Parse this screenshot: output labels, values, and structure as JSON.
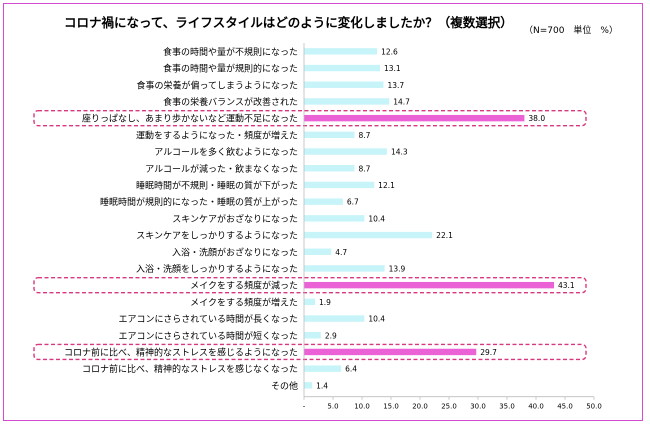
{
  "chart_data": {
    "type": "bar",
    "orientation": "horizontal",
    "title": "コロナ禍になって、ライフスタイルはどのように変化しましたか？（複数選択）",
    "note": "（N=700　単位　%）",
    "categories": [
      "食事の時間や量が不規則になった",
      "食事の時間や量が規則的になった",
      "食事の栄養が偏ってしまうようになった",
      "食事の栄養バランスが改善された",
      "座りっぱなし、あまり歩かないなど運動不足になった",
      "運動をするようになった・頻度が増えた",
      "アルコールを多く飲むようになった",
      "アルコールが減った・飲まなくなった",
      "睡眠時間が不規則・睡眠の質が下がった",
      "睡眠時間が規則的になった・睡眠の質が上がった",
      "スキンケアがおざなりになった",
      "スキンケアをしっかりするようになった",
      "入浴・洗顔がおざなりになった",
      "入浴・洗顔をしっかりするようになった",
      "メイクをする頻度が減った",
      "メイクをする頻度が増えた",
      "エアコンにさらされている時間が長くなった",
      "エアコンにさらされている時間が短くなった",
      "コロナ前に比べ、精神的なストレスを感じるようになった",
      "コロナ前に比べ、精神的なストレスを感じなくなった",
      "その他"
    ],
    "values": [
      12.6,
      13.1,
      13.7,
      14.7,
      38.0,
      8.7,
      14.3,
      8.7,
      12.1,
      6.7,
      10.4,
      22.1,
      4.7,
      13.9,
      43.1,
      1.9,
      10.4,
      2.9,
      29.7,
      6.4,
      1.4
    ],
    "value_labels": [
      "12.6",
      "13.1",
      "13.7",
      "14.7",
      "38.0",
      "8.7",
      "14.3",
      "8.7",
      "12.1",
      "6.7",
      "10.4",
      "22.1",
      "4.7",
      "13.9",
      "43.1",
      "1.9",
      "10.4",
      "2.9",
      "29.7",
      "6.4",
      "1.4"
    ],
    "highlighted": [
      4,
      14,
      18
    ],
    "xlim": [
      0,
      50
    ],
    "xticks": [
      "-",
      "5.0",
      "10.0",
      "15.0",
      "20.0",
      "25.0",
      "30.0",
      "35.0",
      "40.0",
      "45.0",
      "50.0"
    ],
    "grid": false,
    "colors": {
      "bar": "#c6f4f8",
      "bar_highlight": "#ea62d6",
      "highlight_box": "#d8377f",
      "frame": "#d24bd0",
      "axis": "#bdbdbd",
      "text": "#000000"
    }
  }
}
